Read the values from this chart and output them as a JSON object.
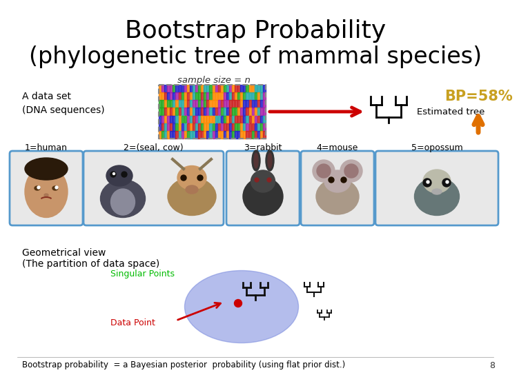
{
  "title_line1": "Bootstrap Probability",
  "title_line2": "(phylogenetic tree of mammal species)",
  "sample_size_label": "sample size = n",
  "data_set_label": "A data set\n(DNA sequences)",
  "estimated_tree_label": "Estimated tree",
  "bp_label": "BP=58%",
  "geo_title_line1": "Geometrical view",
  "geo_title_line2": "(The partition of data space)",
  "singular_points_label": "Singular Points",
  "data_point_label": "Data Point",
  "bottom_text": "Bootstrap probability  = a Bayesian posterior  probability (using flat prior dist.)",
  "page_number": "8",
  "bp_color": "#C8A020",
  "arrow_up_color": "#E07000",
  "singular_color": "#00BB00",
  "data_point_color": "#CC0000",
  "bg_color": "#FFFFFF",
  "title_color": "#000000",
  "blue_box_color": "#5599CC",
  "dna_colors": [
    "#CC2222",
    "#22AA22",
    "#2222CC",
    "#FF8800",
    "#AA22AA"
  ],
  "orange_col_color": "#FF8800",
  "red_arrow_color": "#CC0000"
}
